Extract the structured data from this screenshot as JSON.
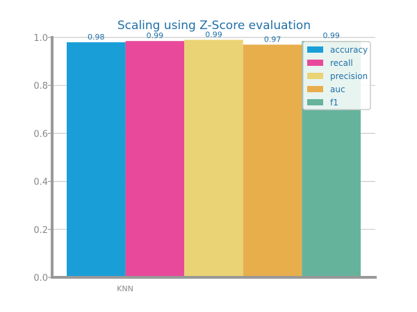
{
  "colors": {
    "title": "#1f6fa8",
    "axis": "#999999",
    "grid": "#cccccc",
    "tick_text": "#888888",
    "data_label": "#1f6fa8",
    "legend_text": "#1f6fa8",
    "legend_border": "#cccccc",
    "legend_bg": "#ffffff"
  },
  "chart_data": {
    "type": "bar",
    "title": "Scaling using Z-Score evaluation",
    "xlabel": "",
    "ylabel": "",
    "categories": [
      "KNN"
    ],
    "ylim": [
      0,
      1.0
    ],
    "yticks": [
      "0.0",
      "0.2",
      "0.4",
      "0.6",
      "0.8",
      "1.0"
    ],
    "grid": true,
    "legend_position": "top-right",
    "series": [
      {
        "name": "accuracy",
        "values": [
          0.98
        ],
        "label": "0.98",
        "color": "#1a9ed7"
      },
      {
        "name": "recall",
        "values": [
          0.985
        ],
        "label": "0.99",
        "color": "#e9499b"
      },
      {
        "name": "precision",
        "values": [
          0.99
        ],
        "label": "0.99",
        "color": "#ead374"
      },
      {
        "name": "auc",
        "values": [
          0.97
        ],
        "label": "0.97",
        "color": "#e8ae4c"
      },
      {
        "name": "f1",
        "values": [
          0.985
        ],
        "label": "0.99",
        "color": "#66b39c"
      }
    ]
  }
}
